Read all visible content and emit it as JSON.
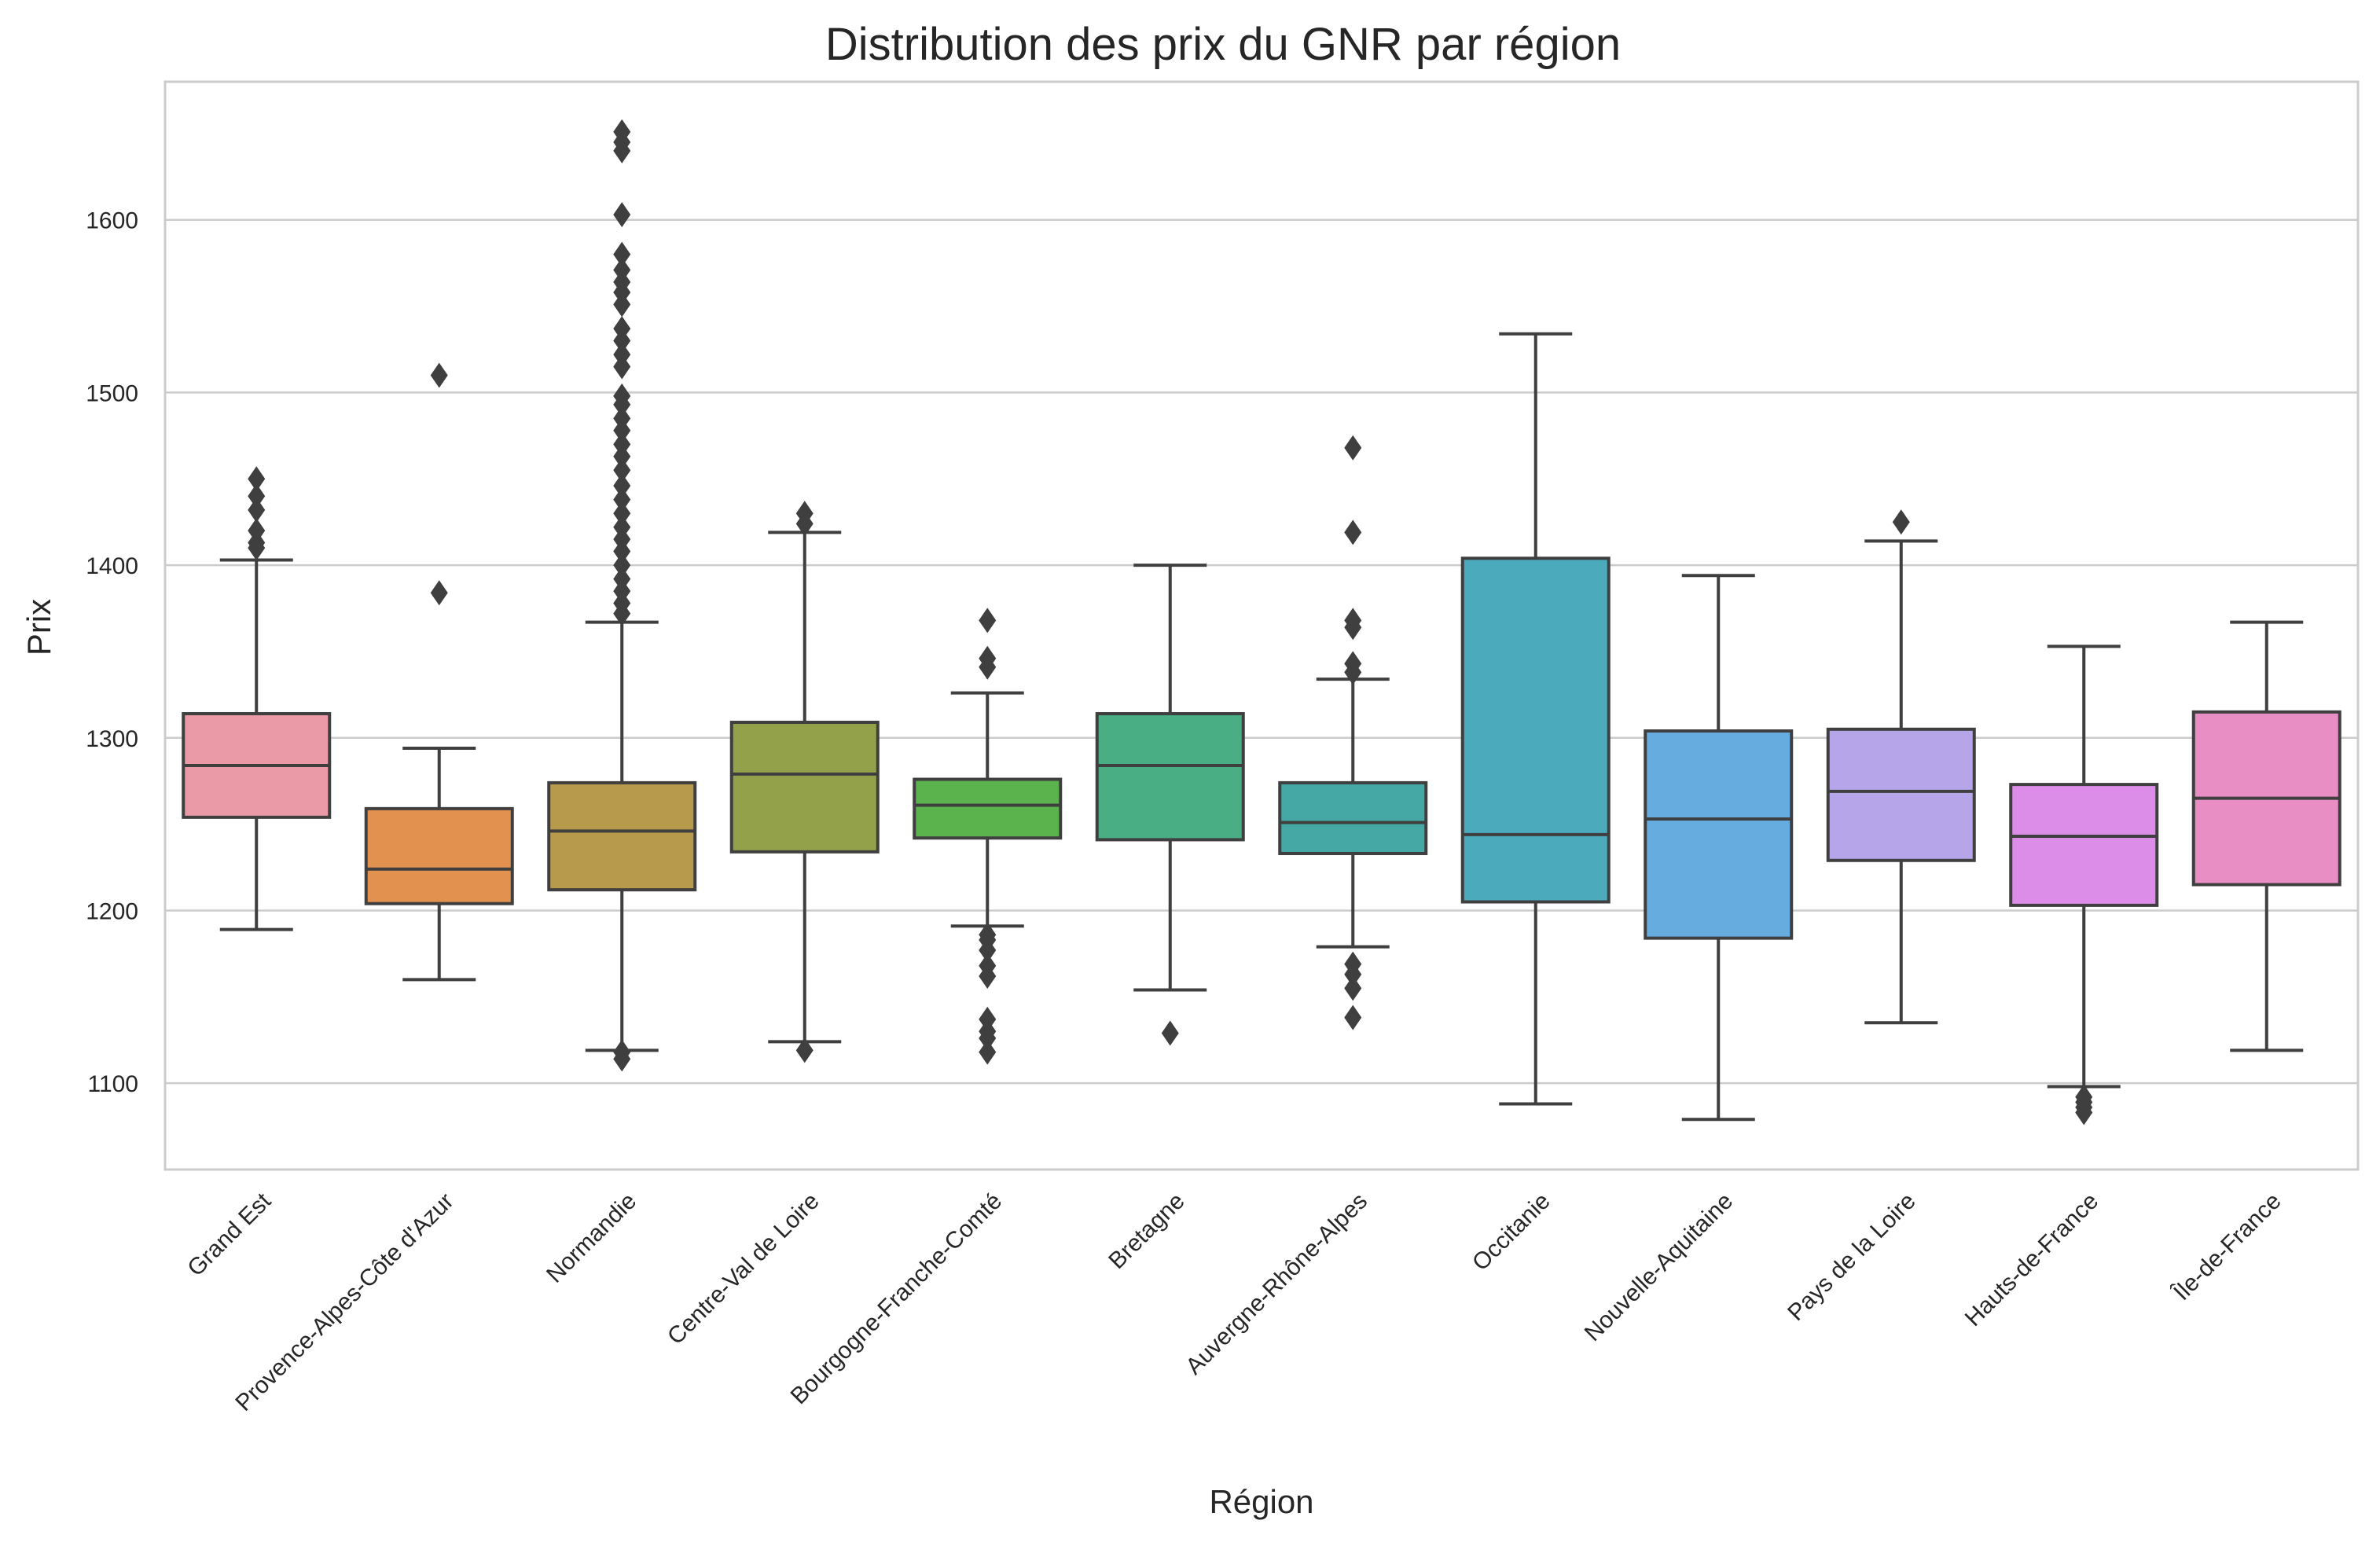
{
  "chart_data": {
    "type": "box",
    "title": "Distribution des prix du GNR par région",
    "xlabel": "Région",
    "ylabel": "Prix",
    "ylim": [
      1050,
      1680
    ],
    "yticks": [
      1100,
      1200,
      1300,
      1400,
      1500,
      1600
    ],
    "grid": "horizontal",
    "categories": [
      {
        "name": "Grand Est",
        "color": "#e99aa6",
        "whisker_low": 1189,
        "q1": 1254,
        "median": 1284,
        "q3": 1314,
        "whisker_high": 1403,
        "outliers": [
          1410,
          1413,
          1420,
          1432,
          1440,
          1450
        ]
      },
      {
        "name": "Provence-Alpes-Côte d'Azur",
        "color": "#e2914f",
        "whisker_low": 1160,
        "q1": 1204,
        "median": 1224,
        "q3": 1259,
        "whisker_high": 1294,
        "outliers": [
          1384,
          1510
        ]
      },
      {
        "name": "Normandie",
        "color": "#b89a4c",
        "whisker_low": 1119,
        "q1": 1212,
        "median": 1246,
        "q3": 1274,
        "whisker_high": 1367,
        "outliers": [
          1114,
          1118,
          1372,
          1378,
          1385,
          1392,
          1400,
          1408,
          1415,
          1422,
          1430,
          1438,
          1446,
          1455,
          1463,
          1470,
          1478,
          1485,
          1493,
          1498,
          1515,
          1522,
          1530,
          1537,
          1551,
          1558,
          1564,
          1571,
          1580,
          1603,
          1640,
          1645,
          1651
        ]
      },
      {
        "name": "Centre-Val de Loire",
        "color": "#93a24a",
        "whisker_low": 1124,
        "q1": 1234,
        "median": 1279,
        "q3": 1309,
        "whisker_high": 1419,
        "outliers": [
          1119,
          1424,
          1430
        ]
      },
      {
        "name": "Bourgogne-Franche-Comté",
        "color": "#5ab34c",
        "whisker_low": 1191,
        "q1": 1242,
        "median": 1261,
        "q3": 1276,
        "whisker_high": 1326,
        "outliers": [
          1118,
          1126,
          1130,
          1137,
          1162,
          1168,
          1177,
          1183,
          1186,
          1341,
          1346,
          1368
        ]
      },
      {
        "name": "Bretagne",
        "color": "#4aae85",
        "whisker_low": 1154,
        "q1": 1241,
        "median": 1284,
        "q3": 1314,
        "whisker_high": 1400,
        "outliers": [
          1129
        ]
      },
      {
        "name": "Auvergne-Rhône-Alpes",
        "color": "#45a8a4",
        "whisker_low": 1179,
        "q1": 1233,
        "median": 1251,
        "q3": 1274,
        "whisker_high": 1334,
        "outliers": [
          1138,
          1155,
          1163,
          1169,
          1338,
          1343,
          1364,
          1368,
          1419,
          1468
        ]
      },
      {
        "name": "Occitanie",
        "color": "#4baabc",
        "whisker_low": 1088,
        "q1": 1205,
        "median": 1244,
        "q3": 1404,
        "whisker_high": 1534,
        "outliers": []
      },
      {
        "name": "Nouvelle-Aquitaine",
        "color": "#67acdf",
        "whisker_low": 1079,
        "q1": 1184,
        "median": 1253,
        "q3": 1304,
        "whisker_high": 1394,
        "outliers": []
      },
      {
        "name": "Pays de la Loire",
        "color": "#b7a5ea",
        "whisker_low": 1135,
        "q1": 1229,
        "median": 1269,
        "q3": 1305,
        "whisker_high": 1414,
        "outliers": [
          1425
        ]
      },
      {
        "name": "Hauts-de-France",
        "color": "#dc8de8",
        "whisker_low": 1098,
        "q1": 1203,
        "median": 1243,
        "q3": 1273,
        "whisker_high": 1353,
        "outliers": [
          1083,
          1086,
          1089,
          1092
        ]
      },
      {
        "name": "Île-de-France",
        "color": "#e98dc5",
        "whisker_low": 1119,
        "q1": 1215,
        "median": 1265,
        "q3": 1315,
        "whisker_high": 1367,
        "outliers": []
      }
    ]
  }
}
